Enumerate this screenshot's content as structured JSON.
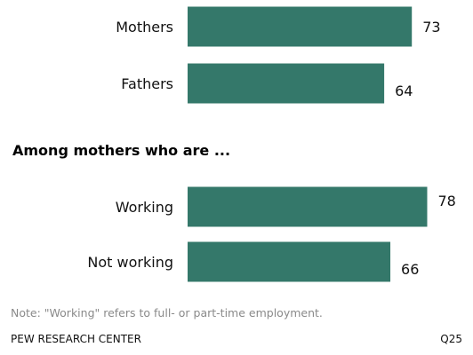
{
  "chart_data": {
    "type": "bar",
    "orientation": "horizontal",
    "groups": [
      {
        "title": "",
        "categories": [
          "Mothers",
          "Fathers"
        ],
        "values": [
          73,
          64
        ]
      },
      {
        "title": "Among mothers who are ...",
        "categories": [
          "Working",
          "Not working"
        ],
        "values": [
          78,
          66
        ]
      }
    ],
    "bar_color": "#34786a",
    "grid": false,
    "legend": "none"
  },
  "section_title": "Among mothers who are ...",
  "note": "Note: \"Working\" refers to full- or part-time employment.",
  "source": "PEW RESEARCH  CENTER",
  "question_ref": "Q25"
}
